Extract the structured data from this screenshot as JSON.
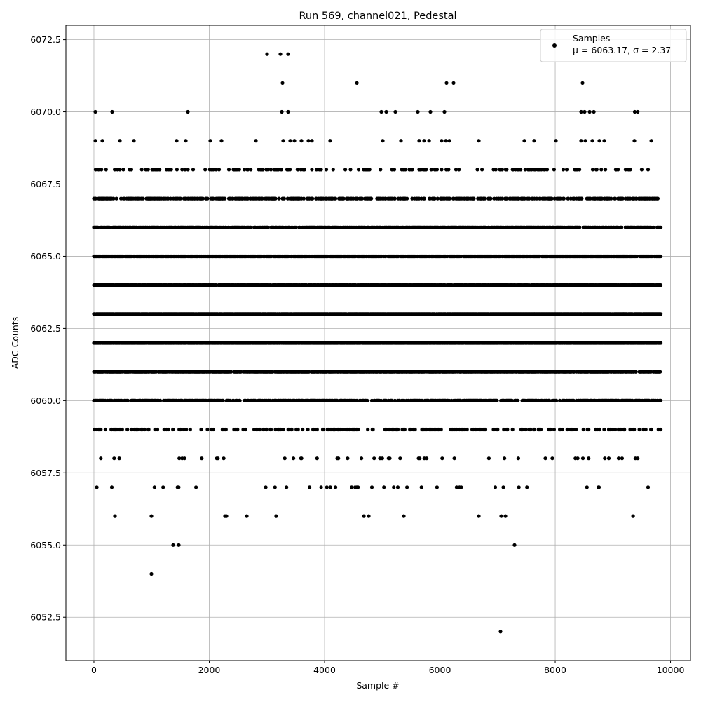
{
  "chart_data": {
    "type": "scatter",
    "title": "Run 569, channel021, Pedestal",
    "xlabel": "Sample #",
    "ylabel": "ADC Counts",
    "xlim": [
      -486,
      10346
    ],
    "ylim": [
      6051.0,
      6073.0
    ],
    "xticks": [
      0,
      2000,
      4000,
      6000,
      8000,
      10000
    ],
    "xtick_labels": [
      "0",
      "2000",
      "4000",
      "6000",
      "8000",
      "10000"
    ],
    "yticks": [
      6052.5,
      6055.0,
      6057.5,
      6060.0,
      6062.5,
      6065.0,
      6067.5,
      6070.0,
      6072.5
    ],
    "ytick_labels": [
      "6052.5",
      "6055.0",
      "6057.5",
      "6060.0",
      "6062.5",
      "6065.0",
      "6067.5",
      "6070.0",
      "6072.5"
    ],
    "grid": true,
    "legend": {
      "position": "top-right",
      "label": "Samples",
      "stats": "μ = 6063.17, σ = 2.37"
    },
    "marker_color": "#000000",
    "n_samples": 9830,
    "level_occupancy": [
      {
        "adc": 6063,
        "fraction": 0.95
      },
      {
        "adc": 6062,
        "fraction": 0.9
      },
      {
        "adc": 6064,
        "fraction": 0.9
      },
      {
        "adc": 6065,
        "fraction": 0.8
      },
      {
        "adc": 6061,
        "fraction": 0.75
      },
      {
        "adc": 6066,
        "fraction": 0.6
      },
      {
        "adc": 6060,
        "fraction": 0.55
      },
      {
        "adc": 6067,
        "fraction": 0.45
      },
      {
        "adc": 6059,
        "fraction": 0.22
      },
      {
        "adc": 6068,
        "fraction": 0.16
      },
      {
        "adc": 6058,
        "fraction": 0.04
      },
      {
        "adc": 6057,
        "fraction": 0.03
      }
    ],
    "sparse_points": [
      [
        3003,
        6072
      ],
      [
        3234,
        6072
      ],
      [
        3368,
        6072
      ],
      [
        3270,
        6071
      ],
      [
        4560,
        6071
      ],
      [
        6115,
        6071
      ],
      [
        6237,
        6071
      ],
      [
        8474,
        6071
      ],
      [
        24,
        6070
      ],
      [
        316,
        6070
      ],
      [
        1629,
        6070
      ],
      [
        3258,
        6070
      ],
      [
        3368,
        6070
      ],
      [
        4985,
        6070
      ],
      [
        5070,
        6070
      ],
      [
        5228,
        6070
      ],
      [
        5617,
        6070
      ],
      [
        5836,
        6070
      ],
      [
        6079,
        6070
      ],
      [
        8450,
        6070
      ],
      [
        8510,
        6070
      ],
      [
        8596,
        6070
      ],
      [
        8669,
        6070
      ],
      [
        9380,
        6070
      ],
      [
        9430,
        6070
      ],
      [
        24,
        6069
      ],
      [
        146,
        6069
      ],
      [
        450,
        6069
      ],
      [
        693,
        6069
      ],
      [
        1435,
        6069
      ],
      [
        1593,
        6069
      ],
      [
        2018,
        6069
      ],
      [
        2213,
        6069
      ],
      [
        2809,
        6069
      ],
      [
        3283,
        6069
      ],
      [
        3404,
        6069
      ],
      [
        3477,
        6069
      ],
      [
        3599,
        6069
      ],
      [
        3720,
        6069
      ],
      [
        3781,
        6069
      ],
      [
        4097,
        6069
      ],
      [
        5009,
        6069
      ],
      [
        5325,
        6069
      ],
      [
        5641,
        6069
      ],
      [
        5726,
        6069
      ],
      [
        5812,
        6069
      ],
      [
        6030,
        6069
      ],
      [
        6103,
        6069
      ],
      [
        6164,
        6069
      ],
      [
        6675,
        6069
      ],
      [
        7465,
        6069
      ],
      [
        7635,
        6069
      ],
      [
        8012,
        6069
      ],
      [
        8450,
        6069
      ],
      [
        8523,
        6069
      ],
      [
        8644,
        6069
      ],
      [
        8766,
        6069
      ],
      [
        8851,
        6069
      ],
      [
        9374,
        6069
      ],
      [
        9666,
        6069
      ],
      [
        365,
        6056
      ],
      [
        997,
        6056
      ],
      [
        2274,
        6056
      ],
      [
        2298,
        6056
      ],
      [
        2650,
        6056
      ],
      [
        3161,
        6056
      ],
      [
        4681,
        6056
      ],
      [
        4766,
        6056
      ],
      [
        5374,
        6056
      ],
      [
        6675,
        6056
      ],
      [
        7064,
        6056
      ],
      [
        7137,
        6056
      ],
      [
        9350,
        6056
      ],
      [
        1374,
        6055
      ],
      [
        1471,
        6055
      ],
      [
        7295,
        6055
      ],
      [
        997,
        6054
      ],
      [
        7052,
        6052
      ]
    ]
  }
}
